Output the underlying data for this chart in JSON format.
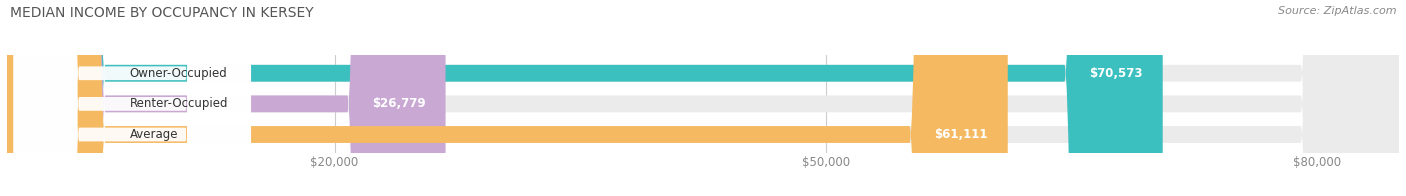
{
  "title": "MEDIAN INCOME BY OCCUPANCY IN KERSEY",
  "source": "Source: ZipAtlas.com",
  "categories": [
    "Owner-Occupied",
    "Renter-Occupied",
    "Average"
  ],
  "values": [
    70573,
    26779,
    61111
  ],
  "bar_colors": [
    "#3bbfbf",
    "#c9a8d4",
    "#f5b961"
  ],
  "bar_bg_color": "#ebebeb",
  "value_labels": [
    "$70,573",
    "$26,779",
    "$61,111"
  ],
  "x_ticks": [
    20000,
    50000,
    80000
  ],
  "x_tick_labels": [
    "$20,000",
    "$50,000",
    "$80,000"
  ],
  "xlim": [
    0,
    85000
  ],
  "title_fontsize": 10,
  "source_fontsize": 8,
  "bar_label_fontsize": 8.5,
  "tick_fontsize": 8.5,
  "background_color": "#ffffff",
  "bar_height": 0.55
}
